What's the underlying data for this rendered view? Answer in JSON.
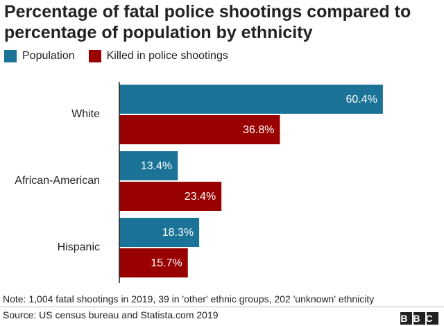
{
  "chart_data": {
    "type": "bar",
    "orientation": "horizontal",
    "title": "Percentage of fatal police shootings compared to percentage of population by ethnicity",
    "categories": [
      "White",
      "African-American",
      "Hispanic"
    ],
    "series": [
      {
        "name": "Population",
        "color": "#1b7398",
        "values": [
          60.4,
          13.4,
          18.3
        ],
        "value_labels": [
          "60.4%",
          "13.4%",
          "18.3%"
        ]
      },
      {
        "name": "Killed in police shootings",
        "color": "#990000",
        "values": [
          36.8,
          23.4,
          15.7
        ],
        "value_labels": [
          "36.8%",
          "23.4%",
          "15.7%"
        ]
      }
    ],
    "note": "Note: 1,004 fatal shootings in 2019, 39 in 'other' ethnic groups, 202 'unknown' ethnicity",
    "source": "Source: US census bureau and Statista.com 2019",
    "logo": "BBC"
  }
}
